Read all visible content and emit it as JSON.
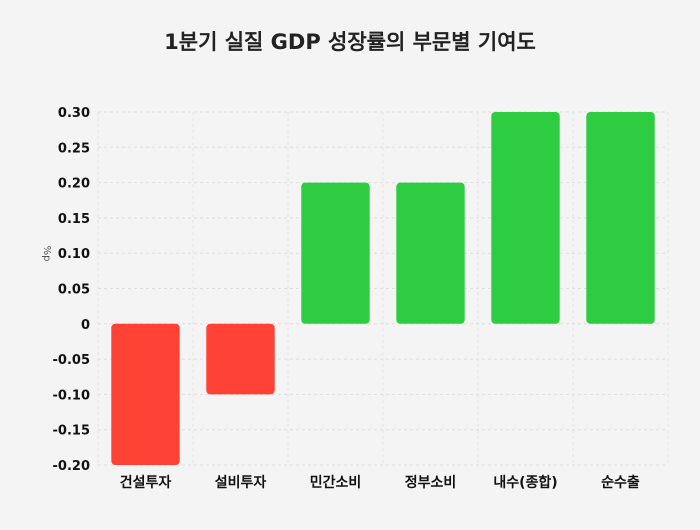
{
  "chart_data": {
    "type": "bar",
    "title": "1분기 실질 GDP 성장률의 부문별 기여도",
    "ylabel": "%p",
    "xlabel": "",
    "categories": [
      "건설투자",
      "설비투자",
      "민간소비",
      "정부소비",
      "내수(종합)",
      "순수출"
    ],
    "values": [
      -0.2,
      -0.1,
      0.2,
      0.2,
      0.3,
      0.3
    ],
    "ylim": [
      -0.2,
      0.3
    ],
    "yticks": [
      "0.30",
      "0.25",
      "0.20",
      "0.15",
      "0.10",
      "0.05",
      "0",
      "-0.05",
      "-0.10",
      "-0.15",
      "-0.20"
    ],
    "colors": {
      "positive": "#2ecc40",
      "negative": "#ff4136"
    },
    "grid": true,
    "legend": "none"
  }
}
